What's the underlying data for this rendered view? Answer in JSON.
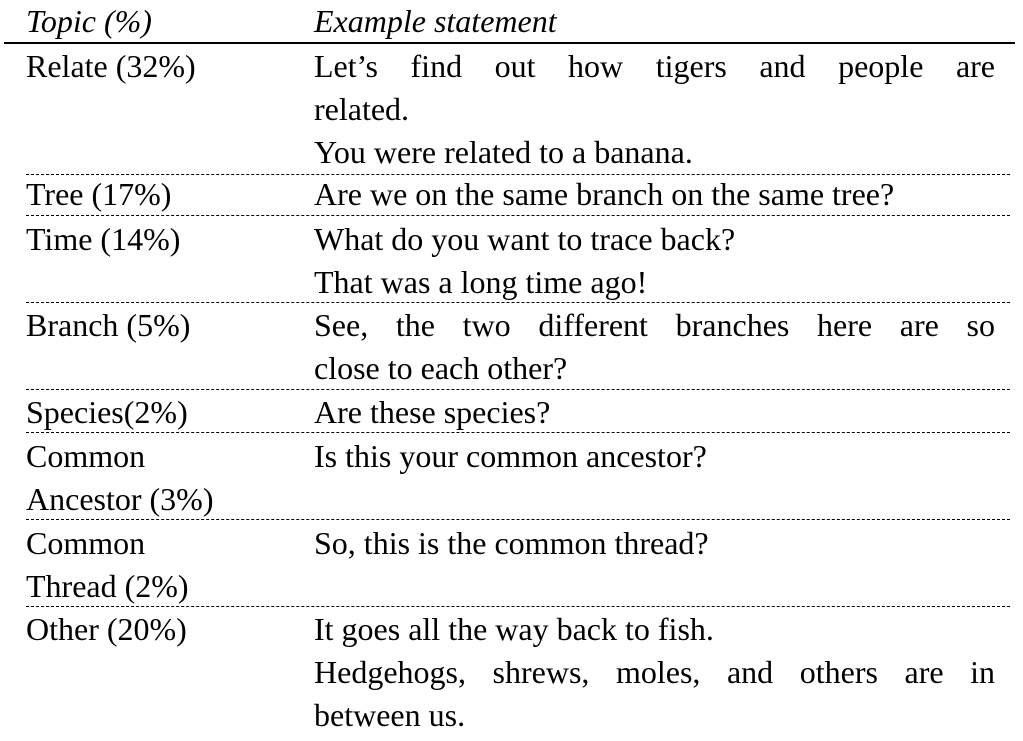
{
  "header": {
    "topic": "Topic (%)",
    "example": "Example statement"
  },
  "rows": [
    {
      "topic_lines": [
        "Relate (32%)"
      ],
      "example_lines": [
        "Let’s find out how tigers and people are",
        "related.",
        "You were related to a banana."
      ]
    },
    {
      "topic_lines": [
        "Tree (17%)"
      ],
      "example_lines": [
        "Are we on the same branch on the same tree?"
      ]
    },
    {
      "topic_lines": [
        "Time (14%)"
      ],
      "example_lines": [
        "What do you want to trace back?",
        "That was a long time ago!"
      ]
    },
    {
      "topic_lines": [
        "Branch (5%)"
      ],
      "example_lines": [
        "See, the two different branches here are so",
        "close to each other?"
      ]
    },
    {
      "topic_lines": [
        "Species(2%)"
      ],
      "example_lines": [
        "Are these species?"
      ]
    },
    {
      "topic_lines": [
        "Common",
        "Ancestor (3%)"
      ],
      "example_lines": [
        "Is this your common ancestor?"
      ]
    },
    {
      "topic_lines": [
        "Common",
        "Thread (2%)"
      ],
      "example_lines": [
        "So, this is the common thread?"
      ]
    },
    {
      "topic_lines": [
        "Other (20%)"
      ],
      "example_lines": [
        "It goes all the way back to fish.",
        "Hedgehogs, shrews, moles, and others are in",
        "between us."
      ]
    }
  ]
}
